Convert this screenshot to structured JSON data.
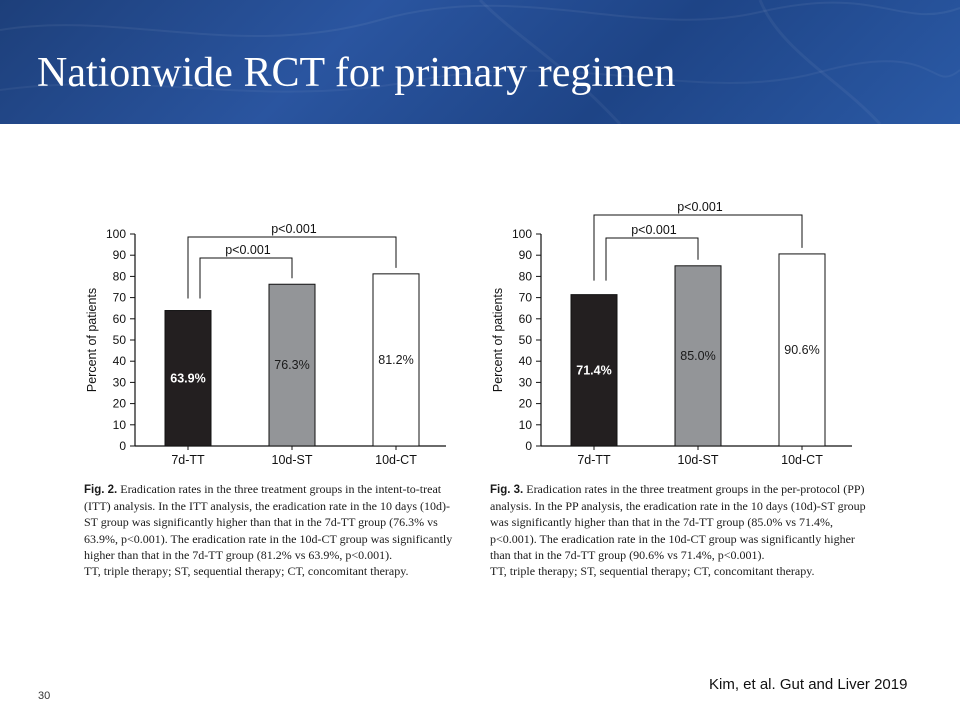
{
  "slide": {
    "title": "Nationwide RCT for primary regimen",
    "citation": "Kim, et al. Gut and Liver 2019",
    "page_number": "30"
  },
  "colors": {
    "header_bg": "#1f4486",
    "tt_bar": "#231f20",
    "st_bar": "#939598",
    "ct_bar": "#ffffff"
  },
  "chart_data": [
    {
      "type": "bar",
      "categories": [
        "7d-TT",
        "10d-ST",
        "10d-CT"
      ],
      "values": [
        63.9,
        76.3,
        81.2
      ],
      "value_labels": [
        "63.9%",
        "76.3%",
        "81.2%"
      ],
      "ylabel": "Percent of patients",
      "ylim": [
        0,
        100
      ],
      "yticks": [
        "0",
        "10",
        "20",
        "30",
        "40",
        "50",
        "60",
        "70",
        "80",
        "90",
        "100"
      ],
      "grid": false,
      "annotations": [
        {
          "from": "7d-TT",
          "to": "10d-ST",
          "text": "p<0.001"
        },
        {
          "from": "7d-TT",
          "to": "10d-CT",
          "text": "p<0.001"
        }
      ]
    },
    {
      "type": "bar",
      "categories": [
        "7d-TT",
        "10d-ST",
        "10d-CT"
      ],
      "values": [
        71.4,
        85.0,
        90.6
      ],
      "value_labels": [
        "71.4%",
        "85.0%",
        "90.6%"
      ],
      "ylabel": "Percent of patients",
      "ylim": [
        0,
        100
      ],
      "yticks": [
        "0",
        "10",
        "20",
        "30",
        "40",
        "50",
        "60",
        "70",
        "80",
        "90",
        "100"
      ],
      "grid": false,
      "annotations": [
        {
          "from": "7d-TT",
          "to": "10d-ST",
          "text": "p<0.001"
        },
        {
          "from": "7d-TT",
          "to": "10d-CT",
          "text": "p<0.001"
        }
      ]
    }
  ],
  "captions": [
    {
      "fig": "Fig. 2.",
      "text": "Eradication rates in the three treatment groups in the intent-to-treat (ITT) analysis. In the ITT analysis, the eradication rate in the 10 days (10d)-ST group was significantly higher than that in the 7d-TT group (76.3% vs 63.9%, p<0.001). The eradication rate in the 10d-CT group was significantly higher than that in the 7d-TT group (81.2% vs 63.9%, p<0.001).",
      "note": "TT, triple therapy; ST, sequential therapy; CT, concomitant therapy."
    },
    {
      "fig": "Fig. 3.",
      "text": "Eradication rates in the three treatment groups in the per-protocol (PP) analysis. In the PP analysis, the eradication rate in the 10 days (10d)-ST group was significantly higher than that in the 7d-TT group (85.0% vs 71.4%, p<0.001). The eradication rate in the 10d-CT group was significantly higher than that in the 7d-TT group (90.6% vs 71.4%, p<0.001).",
      "note": "TT, triple therapy; ST, sequential therapy; CT, concomitant therapy."
    }
  ]
}
